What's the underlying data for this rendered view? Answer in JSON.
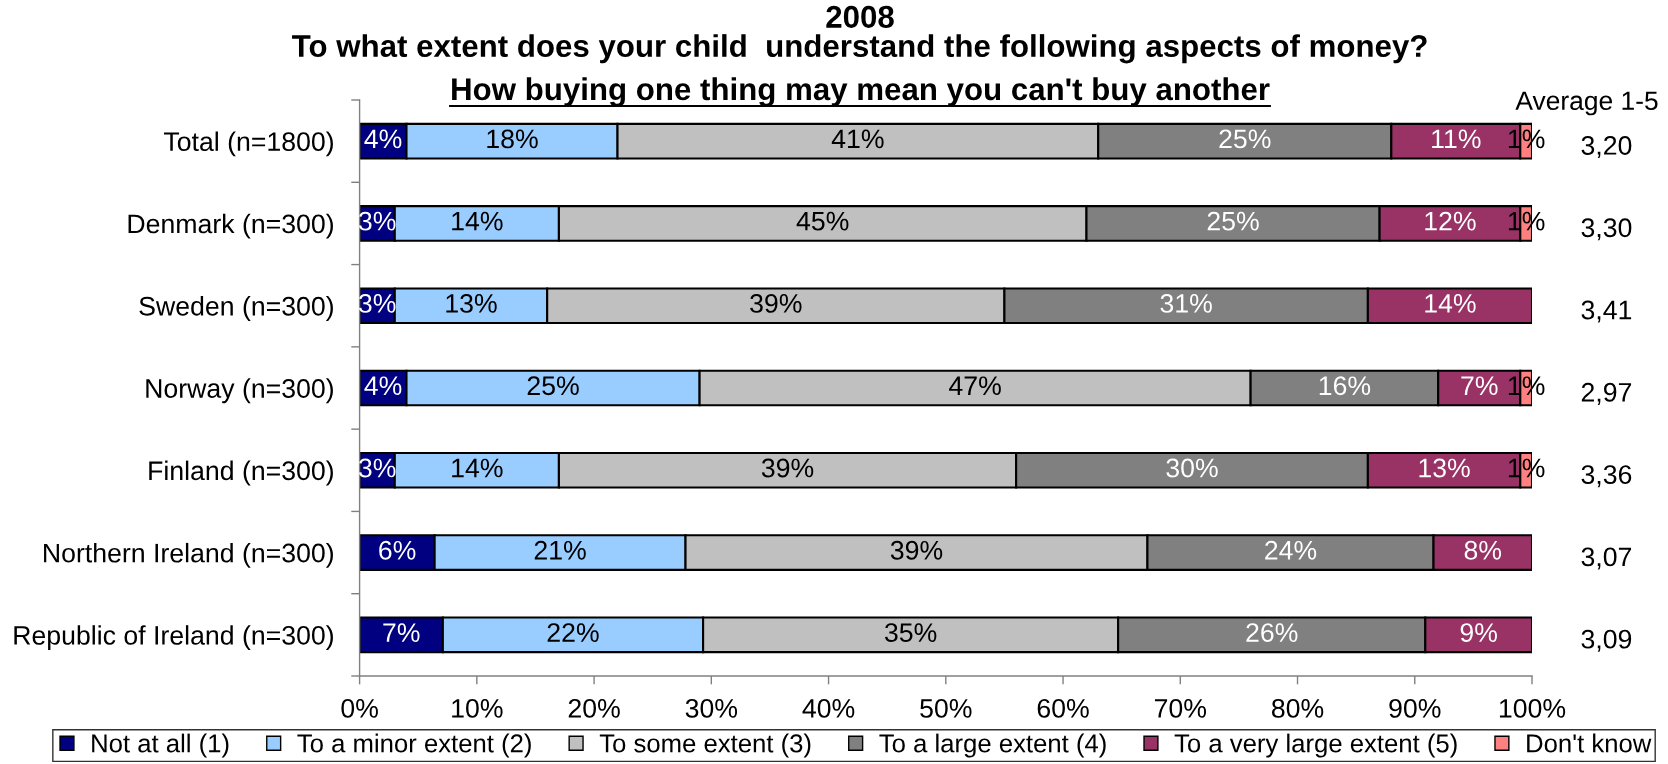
{
  "chart_data": {
    "type": "bar",
    "orientation": "horizontal",
    "stacked": true,
    "title": "2008\nTo what extent does your child  understand the following aspects of money?",
    "subtitle": "How buying one thing may mean you can't buy another",
    "categories": [
      "Total (n=1800)",
      "Denmark (n=300)",
      "Sweden (n=300)",
      "Norway (n=300)",
      "Finland (n=300)",
      "Northern Ireland (n=300)",
      "Republic of Ireland (n=300)"
    ],
    "series": [
      {
        "name": "Not at all (1)",
        "color": "#000080",
        "values": [
          4,
          3,
          3,
          4,
          3,
          6.4,
          7.1
        ],
        "value_labels": [
          "4%",
          "3%",
          "3%",
          "4%",
          "3%",
          "6%",
          "7%"
        ]
      },
      {
        "name": "To a minor extent (2)",
        "color": "#99ccff",
        "values": [
          18,
          14,
          13,
          25,
          14,
          21.4,
          22.2
        ],
        "value_labels": [
          "18%",
          "14%",
          "13%",
          "25%",
          "14%",
          "21%",
          "22%"
        ]
      },
      {
        "name": "To some extent (3)",
        "color": "#c0c0c0",
        "values": [
          41,
          45,
          39,
          47,
          39,
          39.4,
          35.4
        ],
        "value_labels": [
          "41%",
          "45%",
          "39%",
          "47%",
          "39%",
          "39%",
          "35%"
        ]
      },
      {
        "name": "To a large extent (4)",
        "color": "#808080",
        "values": [
          25,
          25,
          31,
          16,
          30,
          24.4,
          26.2
        ],
        "value_labels": [
          "25%",
          "25%",
          "31%",
          "16%",
          "30%",
          "24%",
          "26%"
        ]
      },
      {
        "name": "To a very large extent (5)",
        "color": "#993366",
        "values": [
          11,
          12,
          14,
          7,
          13,
          8.4,
          9.1
        ],
        "value_labels": [
          "11%",
          "12%",
          "14%",
          "7%",
          "13%",
          "8%",
          "9%"
        ]
      },
      {
        "name": "Don't know",
        "color": "#ff8080",
        "values": [
          1,
          1,
          null,
          1,
          1,
          null,
          null
        ],
        "value_labels": [
          "1%",
          "1%",
          null,
          "1%",
          "1%",
          null,
          null
        ]
      }
    ],
    "xlim": [
      0,
      100
    ],
    "xticks": [
      {
        "value": 0,
        "label": "0%"
      },
      {
        "value": 10,
        "label": "10%"
      },
      {
        "value": 20,
        "label": "20%"
      },
      {
        "value": 30,
        "label": "30%"
      },
      {
        "value": 40,
        "label": "40%"
      },
      {
        "value": 50,
        "label": "50%"
      },
      {
        "value": 60,
        "label": "60%"
      },
      {
        "value": 70,
        "label": "70%"
      },
      {
        "value": 80,
        "label": "80%"
      },
      {
        "value": 90,
        "label": "90%"
      },
      {
        "value": 100,
        "label": "100%"
      }
    ],
    "annotations": [
      "Average 1-5",
      "3,20",
      "3,30",
      "3,41",
      "2,97",
      "3,36",
      "3,07",
      "3,09"
    ],
    "legend": "bottom"
  }
}
